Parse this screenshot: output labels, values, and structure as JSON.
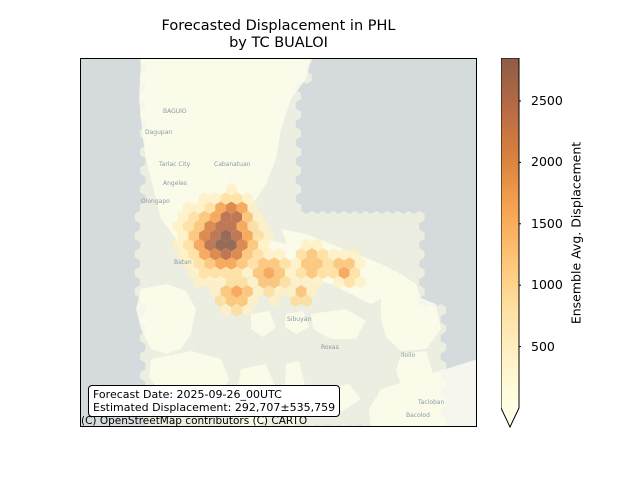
{
  "title": {
    "line1": "Forecasted Displacement in PHL",
    "line2": "by TC BUALOI"
  },
  "info_box": {
    "forecast_date": "Forecast Date: 2025-09-26_00UTC",
    "estimated_displacement": "Estimated Displacement: 292,707±535,759"
  },
  "attribution": "(C) OpenStreetMap contributors (C) CARTO",
  "map_labels": [
    "BAGUIO",
    "Dagupan",
    "Tarlac City",
    "Cabanatuan",
    "Angeles",
    "Olongapo",
    "Batan",
    "Sibuyan",
    "Iloilo",
    "Tacloban",
    "Bacolod",
    "Roxas"
  ],
  "colorbar": {
    "label": "Ensemble Avg. Displacement",
    "ticks": [
      "500",
      "1000",
      "1500",
      "2000",
      "2500"
    ],
    "tick_values": [
      500,
      1000,
      1500,
      2000,
      2500
    ],
    "vmin": 0,
    "vmax": 2850,
    "extend": "min",
    "colormap": [
      "#ffffe6",
      "#fff2c6",
      "#ffe0a0",
      "#fdc475",
      "#f7a350",
      "#d9813f",
      "#b86a45",
      "#8c5d48"
    ]
  },
  "colors": {
    "water": "#d5dadc",
    "land": "#f6f5ee"
  }
}
